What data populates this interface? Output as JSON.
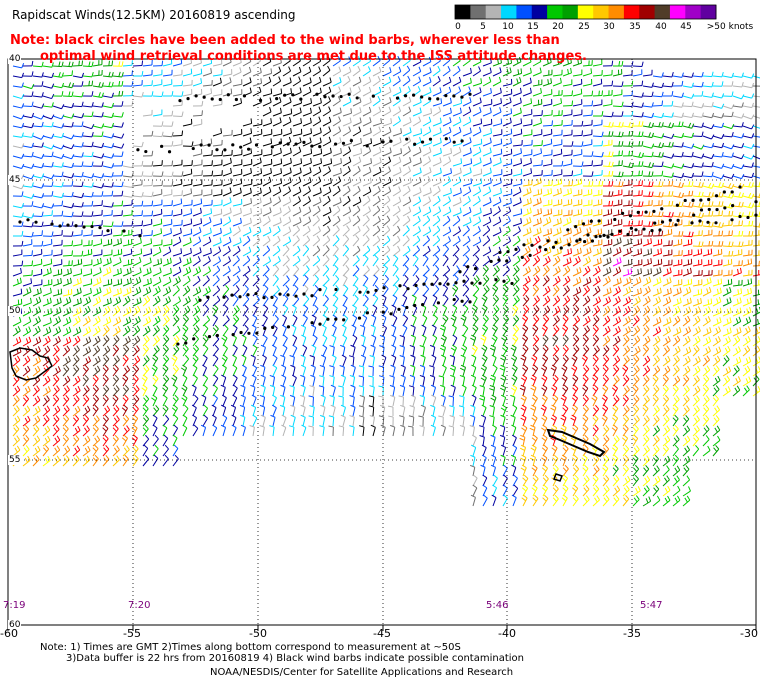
{
  "title": "Rapidscat Winds(12.5KM) 20160819 ascending",
  "note": {
    "line1": "Note: black circles have been added to the wind barbs, wherever less than",
    "line2": "optimal wind retrieval conditions are met due to the ISS attitude changes."
  },
  "legend": {
    "units_label": ">50 knots",
    "ticks": [
      "0",
      "5",
      "10",
      "15",
      "20",
      "25",
      "30",
      "35",
      "40",
      "45",
      ">50 knots"
    ],
    "colors": [
      "#000000",
      "#707070",
      "#b4b4b4",
      "#00d8ff",
      "#0050ff",
      "#0000a0",
      "#00c800",
      "#00a000",
      "#ffff00",
      "#ffc800",
      "#ff8c00",
      "#ff0000",
      "#a00000",
      "#503c28",
      "#ff00ff",
      "#a000c8",
      "#6000a0"
    ]
  },
  "map": {
    "lat_labels": [
      "40",
      "45",
      "50",
      "55",
      "60"
    ],
    "lon_labels": [
      "-60",
      "-55",
      "-50",
      "-45",
      "-40",
      "-35",
      "-30"
    ],
    "time_labels": [
      "7:19",
      "7:20",
      "5:46",
      "5:47"
    ]
  },
  "footer": {
    "line1": "Note: 1) Times are GMT 2)Times along bottom correspond to measurement at ~50S",
    "line2": "3)Data buffer is 22 hrs from 20160819 4) Black wind barbs indicate possible contamination",
    "line3": "NOAA/NESDIS/Center for Satellite Applications and Research"
  }
}
